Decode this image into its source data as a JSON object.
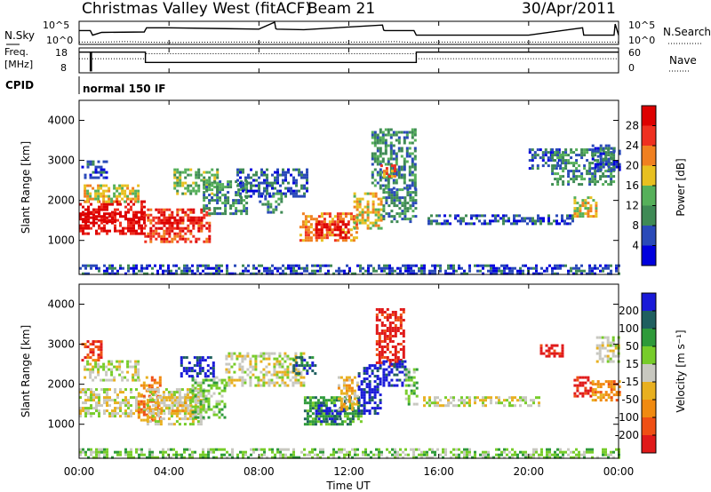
{
  "header": {
    "title": "Christmas Valley West (fitACF)",
    "beam": "Beam 21",
    "date": "30/Apr/2011"
  },
  "colors": {
    "power": [
      "#0000dd",
      "#2a4ab8",
      "#3f8a55",
      "#56b05a",
      "#e8c020",
      "#f08020",
      "#ef3020",
      "#dd0000"
    ],
    "velocity": [
      "#1a1ad8",
      "#1f5f5f",
      "#2e9a3a",
      "#77cc2a",
      "#c8c8c0",
      "#e8b020",
      "#f08a10",
      "#ef4f14",
      "#e01a1a"
    ]
  },
  "chart_data": [
    {
      "type": "line",
      "name": "nsky-nsearch",
      "ylabel_left": "N.Sky",
      "ylabel_right": "N.Search",
      "left_ticks": [
        "10^5",
        "10^0"
      ],
      "right_ticks": [
        "10^5",
        "10^0"
      ],
      "xlim": [
        0,
        24
      ],
      "series": [
        {
          "name": "N.Sky",
          "style": "solid",
          "x": [
            0,
            0.5,
            0.6,
            1,
            2.9,
            3.0,
            4,
            8,
            8.7,
            8.75,
            8.8,
            10,
            13.5,
            13.55,
            13.6,
            14.9,
            15.0,
            16,
            20,
            22.4,
            22.45,
            22.5,
            23.8,
            23.85,
            24
          ],
          "y": [
            3.0,
            3.0,
            2.0,
            2.6,
            2.7,
            3.6,
            3.6,
            3.3,
            4.8,
            3.4,
            3.3,
            3.2,
            4.2,
            3.1,
            3.0,
            3.0,
            2.0,
            2.0,
            2.0,
            3.6,
            2.0,
            2.0,
            2.0,
            4.4,
            2.0
          ]
        },
        {
          "name": "N.Search",
          "style": "dotted",
          "x": [
            0,
            1,
            2,
            3,
            4,
            6,
            8,
            10,
            12,
            13,
            14,
            15,
            16,
            18,
            20,
            22,
            24
          ],
          "y": [
            0.5,
            0.5,
            0.6,
            0.5,
            0.4,
            0.5,
            0.5,
            0.4,
            0.5,
            0.5,
            0.6,
            0.4,
            0.5,
            0.5,
            0.5,
            0.5,
            0.5
          ]
        }
      ]
    },
    {
      "type": "line",
      "name": "freq-nave",
      "ylabel_left": "Freq. [MHz]",
      "ylabel_right": "Nave",
      "left_ticks": [
        "18",
        "8"
      ],
      "right_ticks": [
        "60",
        "0"
      ],
      "xlim": [
        0,
        24
      ],
      "series": [
        {
          "name": "Freq",
          "style": "solid",
          "x": [
            0,
            0.5,
            0.5,
            0.55,
            0.55,
            2.95,
            2.95,
            15.0,
            15.0,
            24
          ],
          "y": [
            16,
            16,
            7,
            7,
            16,
            16,
            11,
            11,
            16,
            16
          ]
        },
        {
          "name": "Nave",
          "style": "dotted",
          "x": [
            0,
            2.95,
            2.95,
            15.0,
            15.0,
            24
          ],
          "y": [
            34,
            34,
            46,
            46,
            34,
            34
          ]
        }
      ]
    },
    {
      "type": "table",
      "name": "cpid",
      "label": "CPID",
      "segments": [
        {
          "start": 0,
          "end": 24,
          "text": "normal 150 IF"
        }
      ]
    },
    {
      "type": "heatmap",
      "name": "power",
      "ylabel": "Slant Range [km]",
      "xlim": [
        0,
        24
      ],
      "ylim": [
        150,
        4500
      ],
      "yticks": [
        1000,
        2000,
        3000,
        4000
      ],
      "colorbar": {
        "label": "Power [dB]",
        "ticks": [
          4,
          8,
          12,
          16,
          20,
          24,
          28
        ],
        "range": [
          0,
          32
        ]
      },
      "regions": [
        {
          "t": [
            0,
            2.9
          ],
          "r": [
            1200,
            2000
          ],
          "level": 7
        },
        {
          "t": [
            0,
            2.9
          ],
          "r": [
            1500,
            1700
          ],
          "level": 8
        },
        {
          "t": [
            0.2,
            2.6
          ],
          "r": [
            2000,
            2400
          ],
          "level": 4
        },
        {
          "t": [
            0.1,
            1.2
          ],
          "r": [
            2600,
            3000
          ],
          "level": 1
        },
        {
          "t": [
            2.9,
            5.8
          ],
          "r": [
            1000,
            1800
          ],
          "level": 6
        },
        {
          "t": [
            3.5,
            5.5
          ],
          "r": [
            1300,
            1600
          ],
          "level": 7
        },
        {
          "t": [
            4.2,
            6.2
          ],
          "r": [
            2200,
            2800
          ],
          "level": 3
        },
        {
          "t": [
            5.5,
            7.5
          ],
          "r": [
            1700,
            2500
          ],
          "level": 2
        },
        {
          "t": [
            7.0,
            10.2
          ],
          "r": [
            2100,
            2800
          ],
          "level": 1
        },
        {
          "t": [
            8.0,
            9.0
          ],
          "r": [
            1700,
            2200
          ],
          "level": 2
        },
        {
          "t": [
            9.8,
            12.4
          ],
          "r": [
            1000,
            1700
          ],
          "level": 5
        },
        {
          "t": [
            10.5,
            12.0
          ],
          "r": [
            1100,
            1500
          ],
          "level": 7
        },
        {
          "t": [
            12.2,
            13.4
          ],
          "r": [
            1300,
            2200
          ],
          "level": 4
        },
        {
          "t": [
            13.0,
            15.0
          ],
          "r": [
            2300,
            3800
          ],
          "level": 2
        },
        {
          "t": [
            13.4,
            14.0
          ],
          "r": [
            2600,
            2900
          ],
          "level": 5
        },
        {
          "t": [
            13.5,
            15.0
          ],
          "r": [
            1500,
            2300
          ],
          "level": 2
        },
        {
          "t": [
            15.5,
            22.0
          ],
          "r": [
            1450,
            1650
          ],
          "level": 1
        },
        {
          "t": [
            20.0,
            21.5
          ],
          "r": [
            2800,
            3300
          ],
          "level": 1
        },
        {
          "t": [
            21.0,
            23.8
          ],
          "r": [
            2400,
            3300
          ],
          "level": 2
        },
        {
          "t": [
            22.0,
            23.0
          ],
          "r": [
            1600,
            2100
          ],
          "level": 4
        },
        {
          "t": [
            22.8,
            24.0
          ],
          "r": [
            2800,
            3400
          ],
          "level": 1
        },
        {
          "t": [
            0,
            24
          ],
          "r": [
            150,
            400
          ],
          "level": 1
        }
      ]
    },
    {
      "type": "heatmap",
      "name": "velocity",
      "ylabel": "Slant Range [km]",
      "xlabel": "Time UT",
      "xlim": [
        0,
        24
      ],
      "ylim": [
        150,
        4500
      ],
      "yticks": [
        1000,
        2000,
        3000,
        4000
      ],
      "xtick_labels": [
        "00:00",
        "04:00",
        "08:00",
        "12:00",
        "16:00",
        "20:00",
        "00:00"
      ],
      "colorbar": {
        "label": "Velocity [m s⁻¹]",
        "ticks": [
          200,
          100,
          50,
          15,
          -15,
          -50,
          -100,
          -200
        ],
        "range": [
          -250,
          250
        ]
      },
      "regions": [
        {
          "t": [
            0,
            2.9
          ],
          "r": [
            1200,
            1900
          ],
          "level": 4
        },
        {
          "t": [
            2.6,
            3.6
          ],
          "r": [
            1100,
            2200
          ],
          "level": 6
        },
        {
          "t": [
            0.2,
            2.6
          ],
          "r": [
            2100,
            2600
          ],
          "level": 4
        },
        {
          "t": [
            0.1,
            1.0
          ],
          "r": [
            2600,
            3100
          ],
          "level": 7
        },
        {
          "t": [
            3.0,
            5.5
          ],
          "r": [
            1000,
            1900
          ],
          "level": 4
        },
        {
          "t": [
            3.5,
            5.0
          ],
          "r": [
            1300,
            1700
          ],
          "level": 5
        },
        {
          "t": [
            5.0,
            6.5
          ],
          "r": [
            1200,
            2200
          ],
          "level": 3
        },
        {
          "t": [
            4.5,
            6.0
          ],
          "r": [
            2200,
            2700
          ],
          "level": 0
        },
        {
          "t": [
            6.5,
            10.0
          ],
          "r": [
            2000,
            2800
          ],
          "level": 4
        },
        {
          "t": [
            9.5,
            10.5
          ],
          "r": [
            2300,
            2700
          ],
          "level": 1
        },
        {
          "t": [
            10.0,
            12.5
          ],
          "r": [
            1000,
            1700
          ],
          "level": 2
        },
        {
          "t": [
            10.5,
            11.8
          ],
          "r": [
            1100,
            1500
          ],
          "level": 0
        },
        {
          "t": [
            11.5,
            12.4
          ],
          "r": [
            1400,
            2200
          ],
          "level": 5
        },
        {
          "t": [
            12.4,
            13.4
          ],
          "r": [
            1300,
            2500
          ],
          "level": 0
        },
        {
          "t": [
            13.2,
            14.5
          ],
          "r": [
            2500,
            3900
          ],
          "level": 8
        },
        {
          "t": [
            13.5,
            14.5
          ],
          "r": [
            2000,
            2600
          ],
          "level": 0
        },
        {
          "t": [
            14.5,
            15.0
          ],
          "r": [
            1500,
            2400
          ],
          "level": 3
        },
        {
          "t": [
            15.3,
            20.5
          ],
          "r": [
            1500,
            1700
          ],
          "level": 4
        },
        {
          "t": [
            20.5,
            21.5
          ],
          "r": [
            2700,
            3000
          ],
          "level": 8
        },
        {
          "t": [
            22.0,
            22.8
          ],
          "r": [
            1700,
            2200
          ],
          "level": 8
        },
        {
          "t": [
            22.8,
            24.0
          ],
          "r": [
            1600,
            2100
          ],
          "level": 6
        },
        {
          "t": [
            23.0,
            24.0
          ],
          "r": [
            2600,
            3200
          ],
          "level": 4
        },
        {
          "t": [
            0,
            24
          ],
          "r": [
            150,
            400
          ],
          "level": 3
        }
      ]
    }
  ]
}
